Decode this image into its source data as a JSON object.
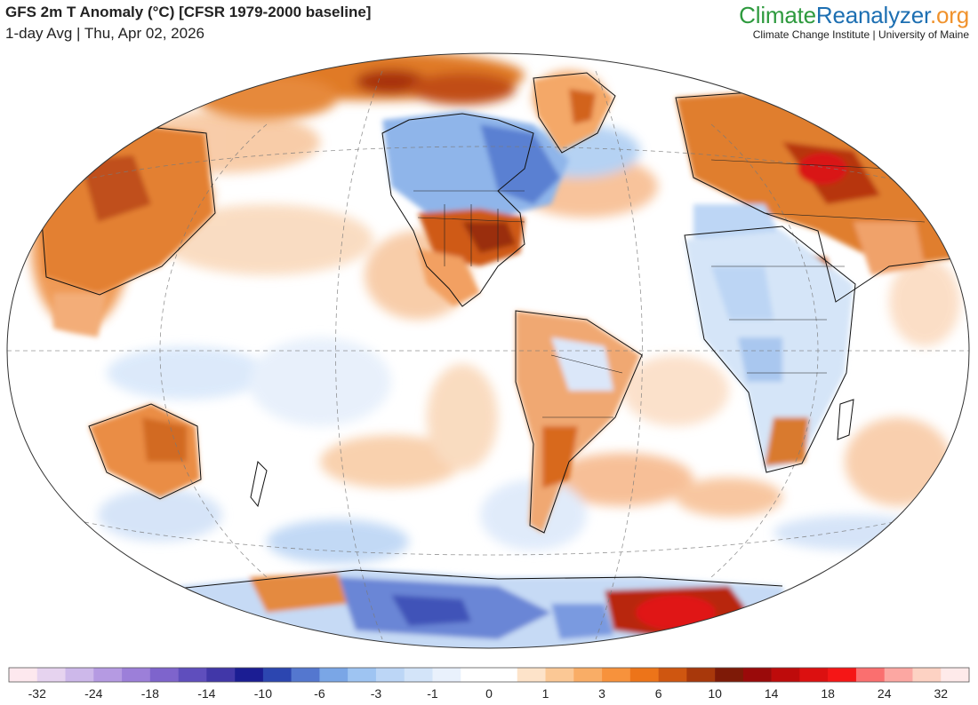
{
  "header": {
    "title": "GFS 2m T Anomaly (°C) [CFSR 1979-2000 baseline]",
    "subtitle": "1-day Avg | Thu, Apr 02, 2026"
  },
  "brand": {
    "logo_part1": "Climate",
    "logo_part2": "Reanalyzer",
    "logo_part3": ".org",
    "tagline": "Climate Change Institute | University of Maine",
    "colors": {
      "climate": "#2e9a3e",
      "reanalyzer": "#1d6fb2",
      "org": "#f0922c"
    }
  },
  "map": {
    "projection": "Winkel tripel",
    "ocean_color": "#ffffff",
    "features": [
      {
        "name": "anomaly-region-north-america-east-warm",
        "sign": "warm"
      },
      {
        "name": "anomaly-region-canada-cold",
        "sign": "cold"
      },
      {
        "name": "anomaly-region-siberia-warm",
        "sign": "warm"
      },
      {
        "name": "anomaly-region-antarctica-warm",
        "sign": "warm"
      },
      {
        "name": "anomaly-region-australia-warm",
        "sign": "warm"
      }
    ]
  },
  "colorbar": {
    "labels": [
      "-32",
      "-24",
      "-18",
      "-14",
      "-10",
      "-6",
      "-3",
      "-1",
      "0",
      "1",
      "3",
      "6",
      "10",
      "14",
      "18",
      "24",
      "32"
    ],
    "colors": [
      "#fde8ee",
      "#e6d3ef",
      "#cdb8ea",
      "#b59ae2",
      "#9c7fd9",
      "#7e64cc",
      "#5f4ebd",
      "#4137a8",
      "#1b1d93",
      "#2c46b0",
      "#5477cf",
      "#7aa6e6",
      "#9ec4f2",
      "#bcd6f6",
      "#d3e4f9",
      "#e9f1fc",
      "#ffffff",
      "#ffffff",
      "#fde3c9",
      "#fbc895",
      "#f9ad66",
      "#f7923c",
      "#ed7419",
      "#cf5610",
      "#a8380b",
      "#7e1a07",
      "#9a0a0a",
      "#be0b0b",
      "#dc1010",
      "#f51616",
      "#fa6f6f",
      "#fca7a2",
      "#fdd2c3",
      "#feeaea"
    ]
  }
}
